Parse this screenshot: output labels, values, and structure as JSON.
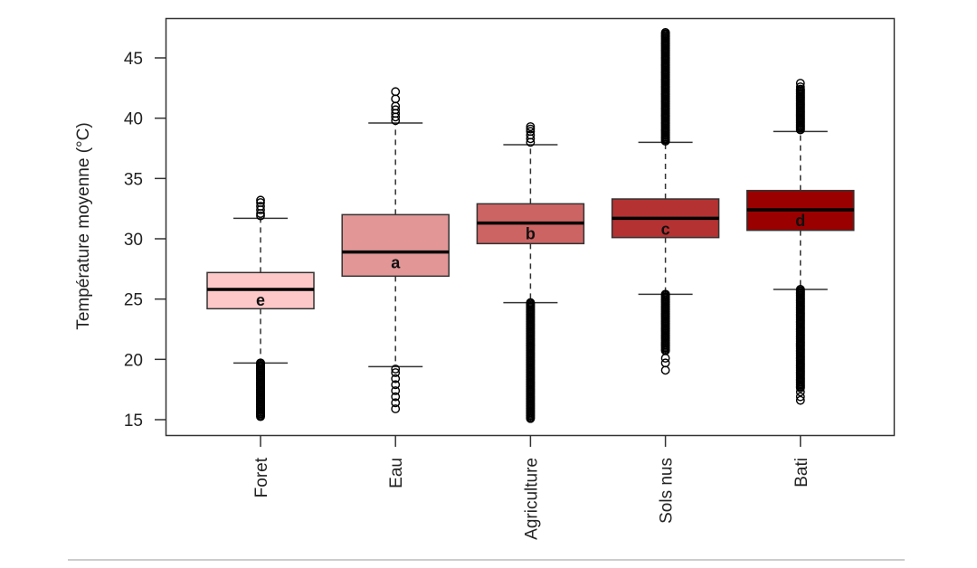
{
  "chart_data": {
    "type": "boxplot",
    "title": "",
    "xlabel": "",
    "ylabel": "Température moyenne (°C)",
    "ylim": [
      14,
      48.5
    ],
    "yticks": [
      15,
      20,
      25,
      30,
      35,
      40,
      45
    ],
    "grid": false,
    "categories": [
      "Foret",
      "Eau",
      "Agriculture",
      "Sols nus",
      "Bati"
    ],
    "series": [
      {
        "name": "Foret",
        "letter": "e",
        "color": "#ffc8c8",
        "q1": 24.2,
        "median": 25.8,
        "q3": 27.2,
        "whisker_low": 19.7,
        "whisker_high": 31.7,
        "outliers_high": [
          31.9,
          32.1,
          32.4,
          32.7,
          33.0,
          33.2
        ],
        "outliers_low_range": [
          15.2,
          19.7
        ]
      },
      {
        "name": "Eau",
        "letter": "a",
        "color": "#e29696",
        "q1": 26.9,
        "median": 28.9,
        "q3": 32.0,
        "whisker_low": 19.4,
        "whisker_high": 39.6,
        "outliers_high": [
          39.8,
          40.1,
          40.4,
          40.7,
          41.0,
          41.6,
          42.2
        ],
        "outliers_low": [
          19.2,
          18.9,
          18.4,
          17.9,
          17.4,
          16.9,
          16.4,
          15.9
        ]
      },
      {
        "name": "Agriculture",
        "letter": "b",
        "color": "#cd6464",
        "q1": 29.6,
        "median": 31.3,
        "q3": 32.9,
        "whisker_low": 24.7,
        "whisker_high": 37.8,
        "outliers_high": [
          38.0,
          38.3,
          38.6,
          38.9,
          39.1,
          39.3
        ],
        "outliers_low_range": [
          15.0,
          24.7
        ]
      },
      {
        "name": "Sols nus",
        "letter": "c",
        "color": "#b43232",
        "q1": 30.1,
        "median": 31.7,
        "q3": 33.3,
        "whisker_low": 25.4,
        "whisker_high": 38.0,
        "outliers_high_range": [
          38.0,
          47.1
        ],
        "outliers_low_range": [
          20.6,
          25.4
        ],
        "outliers_low": [
          20.1,
          19.7,
          19.1
        ]
      },
      {
        "name": "Bati",
        "letter": "d",
        "color": "#9b0000",
        "q1": 30.7,
        "median": 32.4,
        "q3": 34.0,
        "whisker_low": 25.8,
        "whisker_high": 38.9,
        "outliers_high_range": [
          39.0,
          42.4
        ],
        "outliers_high": [
          42.6,
          42.9
        ],
        "outliers_low_range": [
          17.6,
          25.8
        ],
        "outliers_low": [
          17.3,
          16.9,
          16.6
        ]
      }
    ]
  }
}
